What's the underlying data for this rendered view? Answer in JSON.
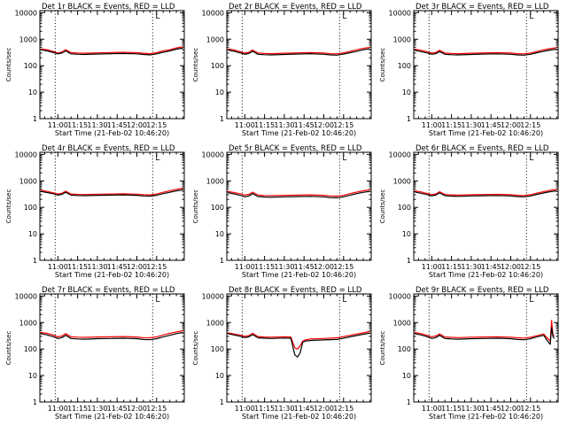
{
  "shared": {
    "xlabel": "Start Time (21-Feb-02 10:46:20)",
    "ylabel": "Counts/sec",
    "x_ticks": [
      "11:00",
      "11:15",
      "11:30",
      "11:45",
      "12:00",
      "12:15"
    ],
    "x_tick_minutes": [
      660,
      675,
      690,
      705,
      720,
      735
    ],
    "y_ticks": [
      "1",
      "10",
      "100",
      "1000",
      "10000"
    ],
    "y_tick_values": [
      1,
      10,
      100,
      1000,
      10000
    ],
    "xlim_minutes": [
      646.33,
      756
    ],
    "ylim": [
      1,
      12000
    ],
    "y_scale": "log",
    "vertical_dotted_lines_minutes": [
      658,
      732
    ],
    "corner_marker": "L",
    "colors": {
      "events": "#000000",
      "lld": "#ff0000",
      "dotted": "#000000"
    }
  },
  "chart_data": [
    {
      "type": "line",
      "title": "Det 1r BLACK = Events, RED = LLD",
      "x": [
        647,
        652,
        657,
        660,
        663,
        666,
        670,
        675,
        680,
        690,
        700,
        710,
        720,
        725,
        730,
        735,
        740,
        745,
        750,
        755
      ],
      "series": [
        {
          "name": "Events",
          "values": [
            400,
            360,
            310,
            280,
            300,
            360,
            280,
            270,
            265,
            275,
            285,
            290,
            280,
            265,
            255,
            280,
            320,
            360,
            420,
            460
          ]
        },
        {
          "name": "LLD",
          "values": [
            430,
            400,
            340,
            300,
            330,
            400,
            310,
            300,
            295,
            305,
            315,
            320,
            310,
            295,
            285,
            310,
            360,
            400,
            470,
            520
          ]
        }
      ]
    },
    {
      "type": "line",
      "title": "Det 2r BLACK = Events, RED = LLD",
      "x": [
        647,
        652,
        657,
        660,
        663,
        666,
        670,
        675,
        680,
        690,
        700,
        710,
        720,
        725,
        730,
        735,
        740,
        745,
        750,
        755
      ],
      "series": [
        {
          "name": "Events",
          "values": [
            390,
            350,
            300,
            270,
            290,
            350,
            270,
            260,
            255,
            265,
            275,
            285,
            270,
            255,
            250,
            275,
            310,
            350,
            400,
            430
          ]
        },
        {
          "name": "LLD",
          "values": [
            430,
            390,
            330,
            300,
            320,
            390,
            300,
            290,
            285,
            295,
            305,
            315,
            300,
            285,
            280,
            305,
            350,
            400,
            450,
            490
          ]
        }
      ]
    },
    {
      "type": "line",
      "title": "Det 3r BLACK = Events, RED = LLD",
      "x": [
        647,
        652,
        657,
        660,
        663,
        666,
        670,
        675,
        680,
        690,
        700,
        710,
        720,
        725,
        730,
        735,
        740,
        745,
        750,
        755
      ],
      "series": [
        {
          "name": "Events",
          "values": [
            380,
            340,
            300,
            270,
            285,
            340,
            270,
            260,
            255,
            265,
            275,
            280,
            270,
            255,
            250,
            270,
            310,
            350,
            390,
            420
          ]
        },
        {
          "name": "LLD",
          "values": [
            420,
            380,
            330,
            300,
            315,
            380,
            300,
            290,
            285,
            295,
            305,
            310,
            300,
            285,
            280,
            300,
            345,
            395,
            440,
            480
          ]
        }
      ]
    },
    {
      "type": "line",
      "title": "Det 4r BLACK = Events, RED = LLD",
      "x": [
        647,
        652,
        657,
        660,
        663,
        666,
        670,
        675,
        680,
        690,
        700,
        710,
        720,
        725,
        730,
        735,
        740,
        745,
        750,
        755
      ],
      "series": [
        {
          "name": "Events",
          "values": [
            400,
            360,
            320,
            290,
            310,
            370,
            290,
            280,
            275,
            285,
            290,
            295,
            285,
            270,
            265,
            285,
            330,
            370,
            420,
            460
          ]
        },
        {
          "name": "LLD",
          "values": [
            440,
            400,
            350,
            320,
            340,
            410,
            320,
            310,
            305,
            315,
            320,
            325,
            315,
            300,
            295,
            320,
            370,
            420,
            480,
            530
          ]
        }
      ]
    },
    {
      "type": "line",
      "title": "Det 5r BLACK = Events, RED = LLD",
      "x": [
        647,
        652,
        657,
        660,
        663,
        666,
        670,
        675,
        680,
        690,
        700,
        710,
        720,
        725,
        730,
        735,
        740,
        745,
        750,
        755
      ],
      "series": [
        {
          "name": "Events",
          "values": [
            360,
            320,
            280,
            250,
            270,
            330,
            255,
            245,
            240,
            250,
            255,
            260,
            250,
            235,
            230,
            250,
            290,
            330,
            370,
            400
          ]
        },
        {
          "name": "LLD",
          "values": [
            400,
            360,
            320,
            290,
            310,
            375,
            290,
            280,
            275,
            285,
            290,
            295,
            285,
            270,
            265,
            285,
            330,
            375,
            420,
            460
          ]
        }
      ]
    },
    {
      "type": "line",
      "title": "Det 6r BLACK = Events, RED = LLD",
      "x": [
        647,
        652,
        657,
        660,
        663,
        666,
        670,
        675,
        680,
        690,
        700,
        710,
        720,
        725,
        730,
        735,
        740,
        745,
        750,
        755
      ],
      "series": [
        {
          "name": "Events",
          "values": [
            380,
            340,
            300,
            270,
            290,
            350,
            275,
            265,
            260,
            270,
            275,
            280,
            270,
            255,
            250,
            270,
            310,
            350,
            390,
            420
          ]
        },
        {
          "name": "LLD",
          "values": [
            420,
            380,
            330,
            300,
            320,
            390,
            305,
            295,
            290,
            300,
            305,
            310,
            300,
            285,
            280,
            300,
            345,
            390,
            440,
            480
          ]
        }
      ]
    },
    {
      "type": "line",
      "title": "Det 7r BLACK = Events, RED = LLD",
      "x": [
        647,
        652,
        657,
        660,
        663,
        666,
        670,
        675,
        680,
        690,
        700,
        710,
        720,
        725,
        730,
        735,
        740,
        745,
        750,
        755
      ],
      "series": [
        {
          "name": "Events",
          "values": [
            380,
            340,
            290,
            250,
            270,
            330,
            250,
            240,
            235,
            245,
            250,
            255,
            245,
            230,
            225,
            245,
            290,
            330,
            380,
            420
          ]
        },
        {
          "name": "LLD",
          "values": [
            420,
            390,
            330,
            290,
            310,
            380,
            290,
            280,
            275,
            285,
            290,
            295,
            285,
            270,
            265,
            290,
            340,
            390,
            440,
            490
          ]
        }
      ]
    },
    {
      "type": "line",
      "title": "Det 8r BLACK = Events, RED = LLD",
      "x": [
        647,
        652,
        657,
        660,
        663,
        666,
        670,
        675,
        680,
        690,
        695,
        698,
        700,
        702,
        704,
        706,
        710,
        720,
        730,
        740,
        750,
        755
      ],
      "series": [
        {
          "name": "Events",
          "values": [
            380,
            340,
            300,
            270,
            290,
            350,
            265,
            255,
            250,
            260,
            255,
            60,
            50,
            70,
            180,
            200,
            210,
            220,
            230,
            290,
            360,
            400
          ]
        },
        {
          "name": "LLD",
          "values": [
            410,
            370,
            330,
            300,
            320,
            390,
            295,
            285,
            280,
            290,
            285,
            110,
            100,
            130,
            200,
            220,
            240,
            250,
            265,
            330,
            410,
            460
          ]
        }
      ]
    },
    {
      "type": "line",
      "title": "Det 9r BLACK = Events, RED = LLD",
      "x": [
        647,
        652,
        657,
        660,
        663,
        666,
        670,
        675,
        680,
        690,
        700,
        710,
        720,
        725,
        730,
        735,
        740,
        745,
        748,
        750,
        751,
        752,
        753
      ],
      "series": [
        {
          "name": "Events",
          "values": [
            380,
            340,
            290,
            250,
            270,
            330,
            250,
            240,
            235,
            245,
            250,
            255,
            245,
            230,
            225,
            245,
            290,
            330,
            200,
            150,
            650,
            300,
            250
          ]
        },
        {
          "name": "LLD",
          "values": [
            420,
            380,
            320,
            290,
            310,
            370,
            285,
            275,
            270,
            280,
            285,
            290,
            280,
            265,
            260,
            280,
            320,
            370,
            250,
            200,
            1200,
            350,
            300
          ]
        }
      ]
    }
  ]
}
